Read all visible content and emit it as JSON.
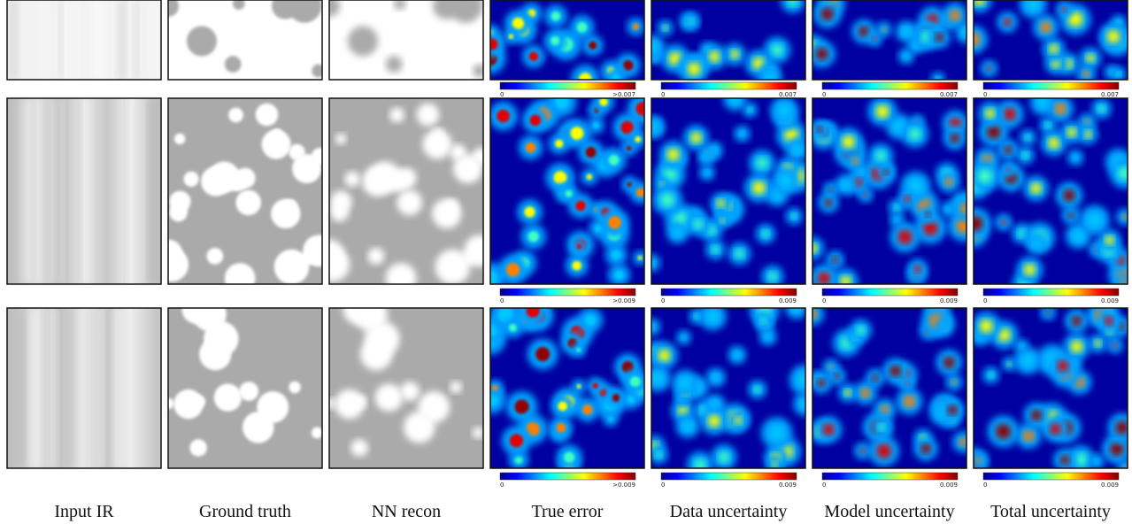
{
  "columns": [
    "Input IR",
    "Ground truth",
    "NN recon",
    "True error",
    "Data uncertainty",
    "Model uncertainty",
    "Total uncertainty"
  ],
  "rows": [
    {
      "colorbars": [
        {
          "min": "0",
          "max": ">0.007"
        },
        {
          "min": "0",
          "max": "0.007"
        },
        {
          "min": "0",
          "max": "0.007"
        },
        {
          "min": "0",
          "max": "0.007"
        }
      ]
    },
    {
      "colorbars": [
        {
          "min": "0",
          "max": ">0.009"
        },
        {
          "min": "0",
          "max": "0.009"
        },
        {
          "min": "0",
          "max": "0.009"
        },
        {
          "min": "0",
          "max": "0.009"
        }
      ]
    },
    {
      "colorbars": [
        {
          "min": "0",
          "max": ">0.009"
        },
        {
          "min": "0",
          "max": "0.009"
        },
        {
          "min": "0",
          "max": "0.009"
        },
        {
          "min": "0",
          "max": "0.009"
        }
      ]
    }
  ]
}
